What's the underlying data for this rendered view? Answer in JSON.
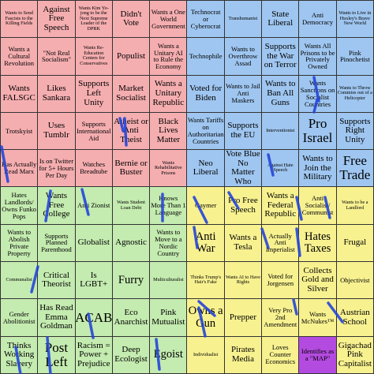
{
  "colors": {
    "authoritarian_left": "#f5aeb0",
    "authoritarian_right": "#9fc6f0",
    "libertarian_left": "#c4ebb0",
    "libertarian_right": "#f7f190",
    "highlight": "#b44be0",
    "marker": "#2546d8"
  },
  "cells": [
    [
      "Wants to Send Fascists to the Killing Fields",
      "Against Free Speech",
      "Wants Kim Yo-jong to be the Next Supreme Leader of the DPRK",
      "Didn't Vote",
      "Wants a One World Government",
      "Technocrat or Cyberocrat",
      "Transhumanist",
      "State Liberal",
      "Anti Democracy",
      "Wants to Live in Huxley's Brave New World"
    ],
    [
      "Wants a Cultural Revolution",
      "\"Not Real Socialism\"",
      "Wants Re-Education Centers for Conservatives",
      "Populist",
      "Wants a Unitary AI to Rule the Economy",
      "Technophile",
      "Wants to Overthrow Assad",
      "Supports the War on Terror",
      "Wants All Prisons to be Privately Owned",
      "Pink Pinochetist"
    ],
    [
      "Wants FALSGC",
      "Likes Sankara",
      "Supports Left Unity",
      "Market Socialist",
      "Wants a Unitary Republic",
      "Voted for Biden",
      "Wants to Jail Anti Maskers",
      "Wants to Ban All Guns",
      "Wants Sanctions on Socialist Countries",
      "Wants to Throw Commies out of a Helicopter"
    ],
    [
      "Trotskyist",
      "Uses Tumblr",
      "Supports International Aid",
      "Atheist or Anti Theist",
      "Black Lives Matter",
      "Wants Tariffs on Authoritarian Countries",
      "Supports the EU",
      "Interventionist",
      "Pro Israel",
      "Supports Right Unity"
    ],
    [
      "Has Actually Read Marx",
      "Is on Twitter for 5+ Hours Per Day",
      "Watches Breadtube",
      "Bernie or Buster",
      "Wants Rehabilitative Prisons",
      "Neo Liberal",
      "Vote Blue No Matter Who",
      "Against Hate Speech",
      "Wants to Join the Military",
      "Free Trade"
    ],
    [
      "Hates Landlords/ Owns Funko Pops",
      "Wants Free College",
      "Anti Zionist",
      "Wants Student Loan Debt",
      "Knows More Than 1 Language",
      "Gaymer",
      "Pro Free Speech",
      "Wants a Federal Republic",
      "Anti Socialist/ Communist",
      "Wants to be a Landlord"
    ],
    [
      "Wants to Abolish Private Property",
      "Supports Planned Parenthood",
      "Globalist",
      "Agnostic",
      "Wants to Move to a Nordic Country",
      "Anti War",
      "Wants a Tesla",
      "Actually Anti Imperialist",
      "Hates Taxes",
      "Frugal"
    ],
    [
      "Communalist",
      "Critical Theorist",
      "Is LGBT+",
      "Furry",
      "Multiculturalist",
      "Thinks Trump's Hair's Fake",
      "Wants AI to Have Rights",
      "Voted for Jorgensen",
      "Collects Gold and Silver",
      "Objectivist"
    ],
    [
      "Gender Abolitionist",
      "Has Read Emma Goldman",
      "ACAB",
      "Eco Anarchist",
      "Pink Mutualist",
      "Owns a Gun",
      "Prepper",
      "Very Pro 2nd Amendment",
      "Wants McNukes™",
      "Austrian School"
    ],
    [
      "Thinks Working Slavery",
      "Post Left",
      "Racism = Power + Prejudice",
      "Deep Ecologist",
      "Egoist",
      "Individualist",
      "Pirates Media",
      "Loves Counter Economics",
      "Identifies as a \"MAP\"",
      "Gigachad Pink Capitalist"
    ]
  ]
}
